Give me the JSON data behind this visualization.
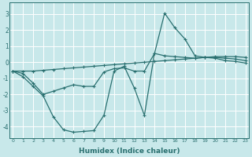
{
  "background_color": "#c8e8ea",
  "grid_color": "#b0d8dc",
  "line_color": "#2a7070",
  "xlabel": "Humidex (Indice chaleur)",
  "x_ticks": [
    0,
    1,
    2,
    3,
    4,
    5,
    6,
    7,
    8,
    9,
    10,
    11,
    12,
    13,
    14,
    15,
    16,
    17,
    18,
    19,
    20,
    21,
    22,
    23
  ],
  "y_ticks": [
    -4,
    -3,
    -2,
    -1,
    0,
    1,
    2,
    3
  ],
  "ylim": [
    -4.7,
    3.7
  ],
  "xlim": [
    -0.3,
    23.3
  ],
  "series1_y": [
    -0.55,
    -0.55,
    -0.55,
    -0.5,
    -0.45,
    -0.4,
    -0.35,
    -0.3,
    -0.25,
    -0.2,
    -0.15,
    -0.1,
    -0.05,
    0.0,
    0.05,
    0.1,
    0.15,
    0.2,
    0.25,
    0.3,
    0.35,
    0.35,
    0.35,
    0.3
  ],
  "series2_y": [
    -0.55,
    -0.7,
    -1.3,
    -2.0,
    -1.8,
    -1.6,
    -1.4,
    -1.5,
    -1.5,
    -0.6,
    -0.4,
    -0.35,
    -0.55,
    -0.55,
    0.55,
    0.4,
    0.35,
    0.3,
    0.25,
    0.3,
    0.3,
    0.25,
    0.2,
    0.1
  ],
  "series3_y": [
    -0.55,
    -0.9,
    -1.5,
    -2.1,
    -3.4,
    -4.2,
    -4.35,
    -4.3,
    -4.25,
    -3.3,
    -0.55,
    -0.25,
    -1.6,
    -3.3,
    0.55,
    3.05,
    2.15,
    1.45,
    0.4,
    0.3,
    0.25,
    0.1,
    0.05,
    -0.05
  ]
}
